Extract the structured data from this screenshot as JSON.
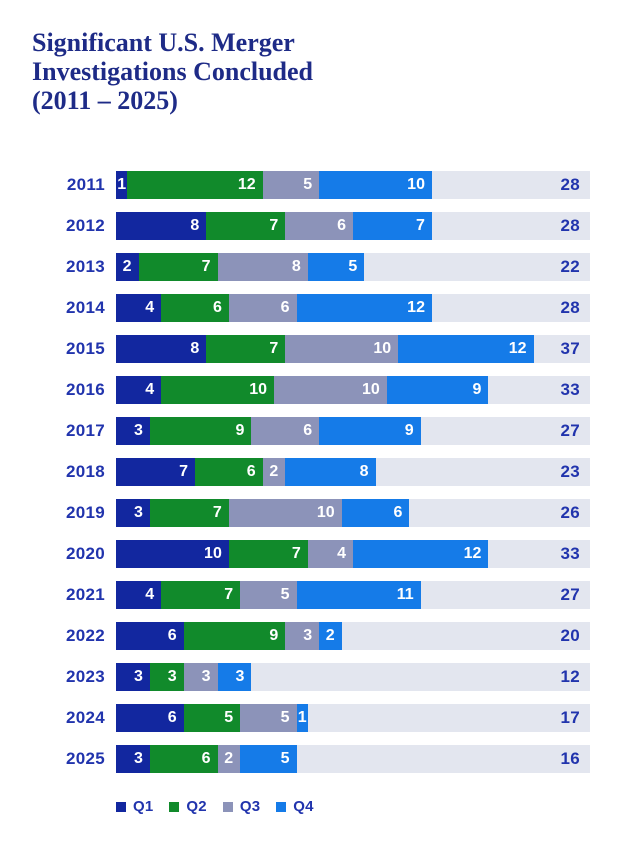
{
  "title": {
    "line1": "Significant U.S. Merger",
    "line2": "Investigations Concluded",
    "line3": "(2011 – 2025)"
  },
  "colors": {
    "title_text": "#1E2B87",
    "axis_text": "#2134AD",
    "track_background": "#E3E6EF",
    "segment_value_text": "#FFFFFF"
  },
  "chart_data": {
    "type": "bar",
    "subtype": "horizontal-stacked",
    "title": "Significant U.S. Merger Investigations Concluded (2011 – 2025)",
    "xlabel": "",
    "ylabel": "",
    "xmax": 42,
    "grid": false,
    "legend_position": "bottom",
    "categories": [
      "2011",
      "2012",
      "2013",
      "2014",
      "2015",
      "2016",
      "2017",
      "2018",
      "2019",
      "2020",
      "2021",
      "2022",
      "2023",
      "2024",
      "2025"
    ],
    "series": [
      {
        "name": "Q1",
        "color": "#12279F",
        "values": [
          1,
          8,
          2,
          4,
          8,
          4,
          3,
          7,
          3,
          10,
          4,
          6,
          3,
          6,
          3
        ]
      },
      {
        "name": "Q2",
        "color": "#118A2B",
        "values": [
          12,
          7,
          7,
          6,
          7,
          10,
          9,
          6,
          7,
          7,
          7,
          9,
          3,
          5,
          6
        ]
      },
      {
        "name": "Q3",
        "color": "#8C93B9",
        "values": [
          5,
          6,
          8,
          6,
          10,
          10,
          6,
          2,
          10,
          4,
          5,
          3,
          3,
          5,
          2
        ]
      },
      {
        "name": "Q4",
        "color": "#157BE8",
        "values": [
          10,
          7,
          5,
          12,
          12,
          9,
          9,
          8,
          6,
          12,
          11,
          2,
          3,
          1,
          5
        ]
      }
    ],
    "totals": [
      28,
      28,
      22,
      28,
      37,
      33,
      27,
      23,
      26,
      33,
      27,
      20,
      12,
      17,
      16
    ]
  }
}
